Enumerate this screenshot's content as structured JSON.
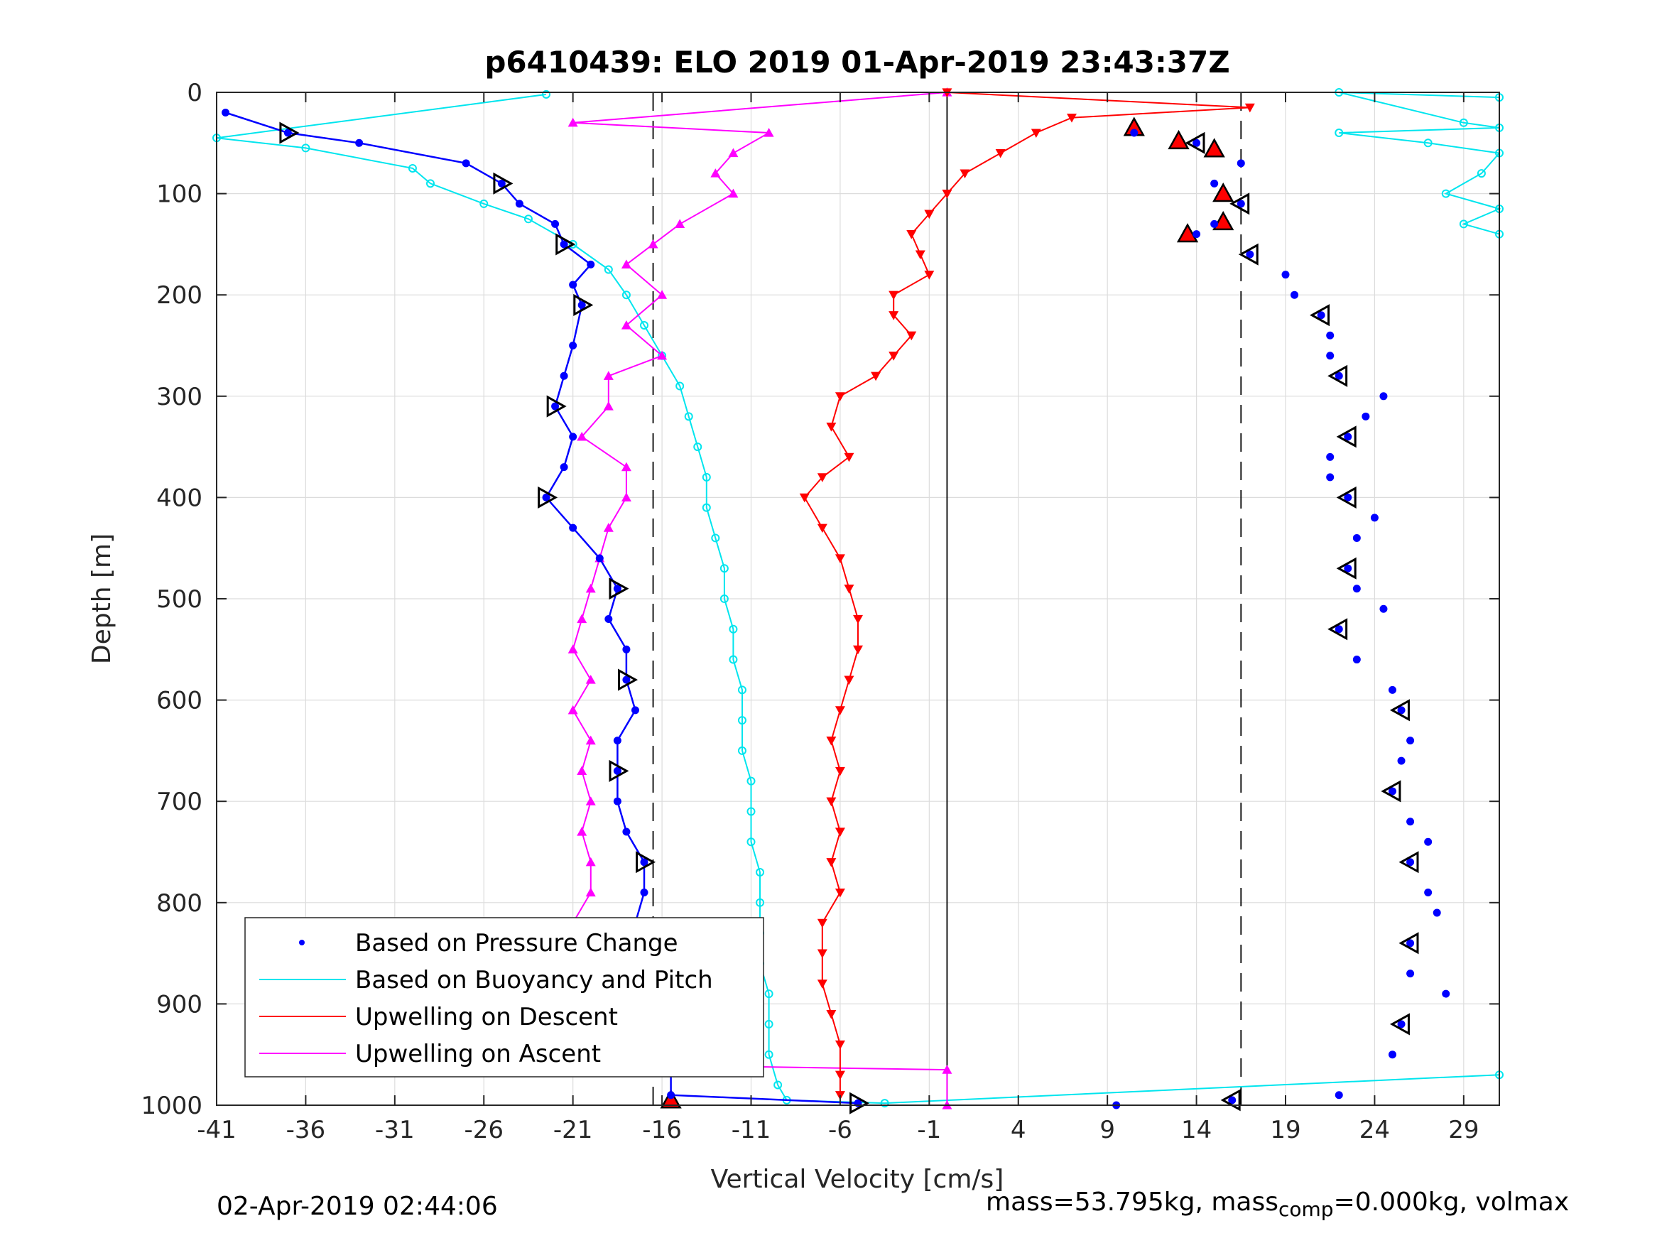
{
  "chart_data": {
    "type": "scatter",
    "title": "p6410439: ELO 2019 01-Apr-2019 23:43:37Z",
    "xlabel": "Vertical Velocity [cm/s]",
    "ylabel": "Depth [m]",
    "xlim": [
      -41,
      31
    ],
    "ylim": [
      0,
      1000
    ],
    "y_reversed": true,
    "grid": true,
    "xticks": [
      "-41",
      "-36",
      "-31",
      "-26",
      "-21",
      "-16",
      "-11",
      "-6",
      "-1",
      "4",
      "9",
      "14",
      "19",
      "24",
      "29"
    ],
    "yticks": [
      "0",
      "100",
      "200",
      "300",
      "400",
      "500",
      "600",
      "700",
      "800",
      "900",
      "1000"
    ],
    "reference_lines": {
      "solid_x": 0,
      "dashed_x": [
        -16.5,
        16.5
      ]
    },
    "legend": {
      "position": "bottom-left",
      "entries": [
        {
          "label": "Based on Pressure Change",
          "color": "#0000ff",
          "style": "dots"
        },
        {
          "label": "Based on Buoyancy and Pitch",
          "color": "#00e5ee",
          "style": "line"
        },
        {
          "label": "Upwelling on Descent",
          "color": "#ff0000",
          "style": "line"
        },
        {
          "label": "Upwelling on Ascent",
          "color": "#ff00ff",
          "style": "line"
        }
      ]
    },
    "series": [
      {
        "name": "Based on Pressure Change",
        "color": "#0000ff",
        "descent": [
          [
            -40.5,
            20
          ],
          [
            -37,
            40
          ],
          [
            -33,
            50
          ],
          [
            -27,
            70
          ],
          [
            -25,
            90
          ],
          [
            -24,
            110
          ],
          [
            -22,
            130
          ],
          [
            -21.5,
            150
          ],
          [
            -20,
            170
          ],
          [
            -21,
            190
          ],
          [
            -20.5,
            210
          ],
          [
            -21,
            250
          ],
          [
            -21.5,
            280
          ],
          [
            -22,
            310
          ],
          [
            -21,
            340
          ],
          [
            -21.5,
            370
          ],
          [
            -22.5,
            400
          ],
          [
            -21,
            430
          ],
          [
            -19.5,
            460
          ],
          [
            -18.5,
            490
          ],
          [
            -19,
            520
          ],
          [
            -18,
            550
          ],
          [
            -18,
            580
          ],
          [
            -17.5,
            610
          ],
          [
            -18.5,
            640
          ],
          [
            -18.5,
            670
          ],
          [
            -18.5,
            700
          ],
          [
            -18,
            730
          ],
          [
            -17,
            760
          ],
          [
            -17,
            790
          ],
          [
            -17.5,
            820
          ],
          [
            -18,
            850
          ],
          [
            -18,
            880
          ],
          [
            -17.5,
            910
          ],
          [
            -16.5,
            940
          ],
          [
            -15.5,
            965
          ],
          [
            -15.5,
            990
          ],
          [
            -5,
            998
          ]
        ],
        "ascent": [
          [
            10.5,
            40
          ],
          [
            14,
            50
          ],
          [
            16.5,
            70
          ],
          [
            15,
            90
          ],
          [
            16.5,
            110
          ],
          [
            15,
            130
          ],
          [
            14,
            140
          ],
          [
            17,
            160
          ],
          [
            19,
            180
          ],
          [
            19.5,
            200
          ],
          [
            21,
            220
          ],
          [
            21.5,
            240
          ],
          [
            21.5,
            260
          ],
          [
            22,
            280
          ],
          [
            24.5,
            300
          ],
          [
            23.5,
            320
          ],
          [
            22.5,
            340
          ],
          [
            21.5,
            360
          ],
          [
            21.5,
            380
          ],
          [
            22.5,
            400
          ],
          [
            24,
            420
          ],
          [
            23,
            440
          ],
          [
            22.5,
            470
          ],
          [
            23,
            490
          ],
          [
            24.5,
            510
          ],
          [
            22,
            530
          ],
          [
            23,
            560
          ],
          [
            25,
            590
          ],
          [
            25.5,
            610
          ],
          [
            26,
            640
          ],
          [
            25.5,
            660
          ],
          [
            25,
            690
          ],
          [
            26,
            720
          ],
          [
            27,
            740
          ],
          [
            26,
            760
          ],
          [
            27,
            790
          ],
          [
            27.5,
            810
          ],
          [
            26,
            840
          ],
          [
            26,
            870
          ],
          [
            28,
            890
          ],
          [
            25.5,
            920
          ],
          [
            25,
            950
          ],
          [
            22,
            990
          ],
          [
            16,
            995
          ],
          [
            9.5,
            1000
          ]
        ]
      },
      {
        "name": "Based on Buoyancy and Pitch",
        "color": "#00e5ee",
        "descent": [
          [
            -22.5,
            2
          ],
          [
            -41,
            45
          ],
          [
            -36,
            55
          ],
          [
            -30,
            75
          ],
          [
            -29,
            90
          ],
          [
            -26,
            110
          ],
          [
            -23.5,
            125
          ],
          [
            -21,
            150
          ],
          [
            -19,
            175
          ],
          [
            -18,
            200
          ],
          [
            -17,
            230
          ],
          [
            -16,
            260
          ],
          [
            -15,
            290
          ],
          [
            -14.5,
            320
          ],
          [
            -14,
            350
          ],
          [
            -13.5,
            380
          ],
          [
            -13.5,
            410
          ],
          [
            -13,
            440
          ],
          [
            -12.5,
            470
          ],
          [
            -12.5,
            500
          ],
          [
            -12,
            530
          ],
          [
            -12,
            560
          ],
          [
            -11.5,
            590
          ],
          [
            -11.5,
            620
          ],
          [
            -11.5,
            650
          ],
          [
            -11,
            680
          ],
          [
            -11,
            710
          ],
          [
            -11,
            740
          ],
          [
            -10.5,
            770
          ],
          [
            -10.5,
            800
          ],
          [
            -10.5,
            830
          ],
          [
            -10.5,
            860
          ],
          [
            -10,
            890
          ],
          [
            -10,
            920
          ],
          [
            -10,
            950
          ],
          [
            -9.5,
            980
          ],
          [
            -9,
            995
          ],
          [
            -3.5,
            998
          ],
          [
            31,
            970
          ]
        ],
        "ascent": [
          [
            31,
            5
          ],
          [
            22,
            0
          ],
          [
            29,
            30
          ],
          [
            31,
            35
          ],
          [
            22,
            40
          ],
          [
            27,
            50
          ],
          [
            31,
            60
          ],
          [
            30,
            80
          ],
          [
            28,
            100
          ],
          [
            31,
            115
          ],
          [
            29,
            130
          ],
          [
            31,
            140
          ]
        ]
      },
      {
        "name": "Upwelling on Descent",
        "color": "#ff0000",
        "descent": [
          [
            0,
            0
          ],
          [
            17,
            15
          ],
          [
            7,
            25
          ],
          [
            5,
            40
          ],
          [
            3,
            60
          ],
          [
            1,
            80
          ],
          [
            0,
            100
          ],
          [
            -1,
            120
          ],
          [
            -2,
            140
          ],
          [
            -1.5,
            160
          ],
          [
            -1,
            180
          ],
          [
            -3,
            200
          ],
          [
            -3,
            220
          ],
          [
            -2,
            240
          ],
          [
            -3,
            260
          ],
          [
            -4,
            280
          ],
          [
            -6,
            300
          ],
          [
            -6.5,
            330
          ],
          [
            -5.5,
            360
          ],
          [
            -7,
            380
          ],
          [
            -8,
            400
          ],
          [
            -7,
            430
          ],
          [
            -6,
            460
          ],
          [
            -5.5,
            490
          ],
          [
            -5,
            520
          ],
          [
            -5,
            550
          ],
          [
            -5.5,
            580
          ],
          [
            -6,
            610
          ],
          [
            -6.5,
            640
          ],
          [
            -6,
            670
          ],
          [
            -6.5,
            700
          ],
          [
            -6,
            730
          ],
          [
            -6.5,
            760
          ],
          [
            -6,
            790
          ],
          [
            -7,
            820
          ],
          [
            -7,
            850
          ],
          [
            -7,
            880
          ],
          [
            -6.5,
            910
          ],
          [
            -6,
            940
          ],
          [
            -6,
            970
          ],
          [
            -6,
            990
          ]
        ],
        "markers_ascent": [
          [
            10.5,
            35
          ],
          [
            13,
            48
          ],
          [
            15,
            56
          ],
          [
            15.5,
            100
          ],
          [
            15.5,
            128
          ],
          [
            13.5,
            140
          ],
          [
            -15.5,
            995
          ]
        ]
      },
      {
        "name": "Upwelling on Ascent",
        "color": "#ff00ff",
        "ascent": [
          [
            0,
            0
          ],
          [
            -21,
            30
          ],
          [
            -10,
            40
          ],
          [
            -12,
            60
          ],
          [
            -13,
            80
          ],
          [
            -12,
            100
          ],
          [
            -15,
            130
          ],
          [
            -16.5,
            150
          ],
          [
            -18,
            170
          ],
          [
            -16,
            200
          ],
          [
            -18,
            230
          ],
          [
            -16,
            260
          ],
          [
            -19,
            280
          ],
          [
            -19,
            310
          ],
          [
            -20.5,
            340
          ],
          [
            -18,
            370
          ],
          [
            -18,
            400
          ],
          [
            -19,
            430
          ],
          [
            -19.5,
            460
          ],
          [
            -20,
            490
          ],
          [
            -20.5,
            520
          ],
          [
            -21,
            550
          ],
          [
            -20,
            580
          ],
          [
            -21,
            610
          ],
          [
            -20,
            640
          ],
          [
            -20.5,
            670
          ],
          [
            -20,
            700
          ],
          [
            -20.5,
            730
          ],
          [
            -20,
            760
          ],
          [
            -20,
            790
          ],
          [
            -21,
            820
          ],
          [
            -20,
            850
          ],
          [
            -19.5,
            880
          ],
          [
            -18.5,
            910
          ],
          [
            -19,
            940
          ],
          [
            -18,
            960
          ],
          [
            0,
            965
          ],
          [
            0,
            1000
          ]
        ]
      }
    ]
  },
  "footer": {
    "left": "02-Apr-2019 02:44:06",
    "right_prefix": "mass=53.795kg, mass",
    "right_sub": "comp",
    "right_suffix": "=0.000kg, volmax"
  }
}
